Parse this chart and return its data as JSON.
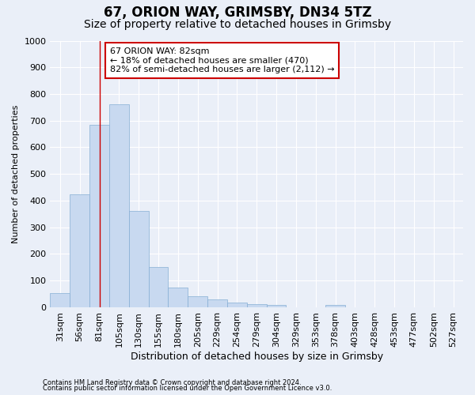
{
  "title": "67, ORION WAY, GRIMSBY, DN34 5TZ",
  "subtitle": "Size of property relative to detached houses in Grimsby",
  "xlabel": "Distribution of detached houses by size in Grimsby",
  "ylabel": "Number of detached properties",
  "footer_line1": "Contains HM Land Registry data © Crown copyright and database right 2024.",
  "footer_line2": "Contains public sector information licensed under the Open Government Licence v3.0.",
  "bar_labels": [
    "31sqm",
    "56sqm",
    "81sqm",
    "105sqm",
    "130sqm",
    "155sqm",
    "180sqm",
    "205sqm",
    "229sqm",
    "254sqm",
    "279sqm",
    "304sqm",
    "329sqm",
    "353sqm",
    "378sqm",
    "403sqm",
    "428sqm",
    "453sqm",
    "477sqm",
    "502sqm",
    "527sqm"
  ],
  "bar_values": [
    52,
    425,
    685,
    760,
    362,
    152,
    75,
    40,
    30,
    17,
    12,
    8,
    0,
    0,
    8,
    0,
    0,
    0,
    0,
    0,
    0
  ],
  "bar_color": "#c8d9f0",
  "bar_edgecolor": "#85aed4",
  "vline_x": 2.0,
  "vline_color": "#cc0000",
  "ylim": [
    0,
    1000
  ],
  "yticks": [
    0,
    100,
    200,
    300,
    400,
    500,
    600,
    700,
    800,
    900,
    1000
  ],
  "annotation_text": "67 ORION WAY: 82sqm\n← 18% of detached houses are smaller (470)\n82% of semi-detached houses are larger (2,112) →",
  "annotation_box_facecolor": "#ffffff",
  "annotation_box_edgecolor": "#cc0000",
  "bg_color": "#eaeff8",
  "plot_bg_color": "#eaeff8",
  "grid_color": "#ffffff",
  "title_fontsize": 12,
  "subtitle_fontsize": 10,
  "xlabel_fontsize": 9,
  "ylabel_fontsize": 8,
  "tick_fontsize": 8,
  "annotation_fontsize": 8,
  "footer_fontsize": 6
}
